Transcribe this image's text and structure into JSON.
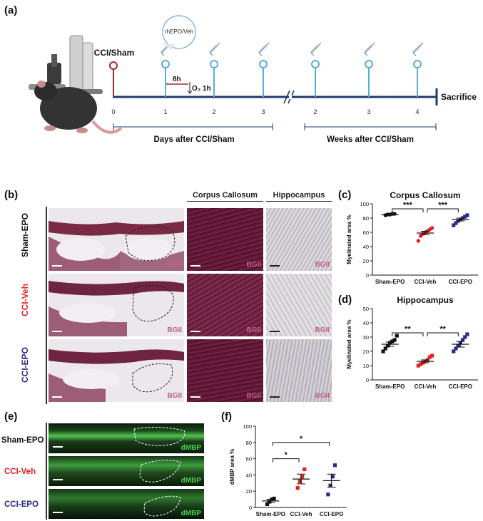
{
  "panels": {
    "a": {
      "letter": "(a)",
      "injection_label": "rhEPO/Veh",
      "start_label": "CCI/Sham",
      "end_label": "Sacrifice",
      "interval_label": "8h",
      "oxygen_label": "O₂ 1h",
      "day_ticks": [
        "0",
        "1",
        "2",
        "3"
      ],
      "week_ticks": [
        "2",
        "3",
        "4"
      ],
      "days_caption": "Days after CCI/Sham",
      "weeks_caption": "Weeks after CCI/Sham",
      "colors": {
        "axis": "#1f3a6b",
        "start_marker": "#a12b2b",
        "injection_marker": "#5aaed6"
      }
    },
    "b": {
      "letter": "(b)",
      "col_headers": [
        "Corpus Callosum",
        "Hippocampus"
      ],
      "rows": [
        {
          "label": "Sham-EPO",
          "color": "#111111"
        },
        {
          "label": "CCI-Veh",
          "color": "#e52020"
        },
        {
          "label": "CCI-EPO",
          "color": "#2a2a8c"
        }
      ],
      "stain_label": "BGII",
      "stain_color": "#c0608a"
    },
    "c": {
      "letter": "(c)",
      "signif": [
        "***",
        "***"
      ]
    },
    "d": {
      "letter": "(d)",
      "signif": [
        "**",
        "**"
      ]
    },
    "e": {
      "letter": "(e)",
      "rows": [
        {
          "label": "Sham-EPO",
          "color": "#111111"
        },
        {
          "label": "CCI-Veh",
          "color": "#e52020"
        },
        {
          "label": "CCI-EPO",
          "color": "#2a2a8c"
        }
      ],
      "stain_label": "dMBP",
      "stain_color": "#4fd04f"
    },
    "f": {
      "letter": "(f)",
      "signif": [
        "*",
        "*"
      ]
    }
  },
  "chart_data": [
    {
      "id": "c",
      "type": "scatter",
      "title": "Corpus Callosum",
      "ylabel": "Myelinated area %",
      "ylim": [
        0,
        100
      ],
      "yticks": [
        0,
        20,
        40,
        60,
        80,
        100
      ],
      "categories": [
        "Sham-EPO",
        "CCI-Veh",
        "CCI-EPO"
      ],
      "series": [
        {
          "category": "Sham-EPO",
          "color": "#111111",
          "marker": "circle",
          "points": [
            84,
            85,
            85,
            86,
            86
          ],
          "mean": 85,
          "sem": 1
        },
        {
          "category": "CCI-Veh",
          "color": "#e52020",
          "marker": "circle",
          "points": [
            48,
            55,
            58,
            60,
            62,
            64,
            66
          ],
          "mean": 59,
          "sem": 2.5
        },
        {
          "category": "CCI-EPO",
          "color": "#2a2a8c",
          "marker": "square",
          "points": [
            70,
            73,
            76,
            78,
            80,
            82,
            84
          ],
          "mean": 78,
          "sem": 2
        }
      ]
    },
    {
      "id": "d",
      "type": "scatter",
      "title": "Hippocampus",
      "ylabel": "Myelinated area %",
      "ylim": [
        0,
        50
      ],
      "yticks": [
        0,
        10,
        20,
        30,
        40,
        50
      ],
      "categories": [
        "Sham-EPO",
        "CCI-Veh",
        "CCI-EPO"
      ],
      "series": [
        {
          "category": "Sham-EPO",
          "color": "#111111",
          "marker": "square",
          "points": [
            20,
            22,
            24,
            26,
            27,
            28,
            31
          ],
          "mean": 25,
          "sem": 1.5
        },
        {
          "category": "CCI-Veh",
          "color": "#e52020",
          "marker": "square",
          "points": [
            10,
            11,
            12,
            13,
            14,
            16,
            17
          ],
          "mean": 13,
          "sem": 1
        },
        {
          "category": "CCI-EPO",
          "color": "#2a2a8c",
          "marker": "square",
          "points": [
            20,
            22,
            24,
            26,
            28,
            30,
            32
          ],
          "mean": 25,
          "sem": 2
        }
      ]
    },
    {
      "id": "f",
      "type": "scatter",
      "ylabel": "dMBP area %",
      "ylim": [
        0,
        100
      ],
      "yticks": [
        0,
        20,
        40,
        60,
        80,
        100
      ],
      "categories": [
        "Sham-EPO",
        "CCI-Veh",
        "CCI-EPO"
      ],
      "series": [
        {
          "category": "Sham-EPO",
          "color": "#111111",
          "marker": "square",
          "points": [
            4,
            7,
            10,
            11
          ],
          "mean": 8,
          "sem": 2
        },
        {
          "category": "CCI-Veh",
          "color": "#e52020",
          "marker": "square",
          "points": [
            24,
            32,
            38,
            47
          ],
          "mean": 35,
          "sem": 6
        },
        {
          "category": "CCI-EPO",
          "color": "#2a2a8c",
          "marker": "square",
          "points": [
            16,
            27,
            38,
            52
          ],
          "mean": 33,
          "sem": 8
        }
      ]
    }
  ]
}
